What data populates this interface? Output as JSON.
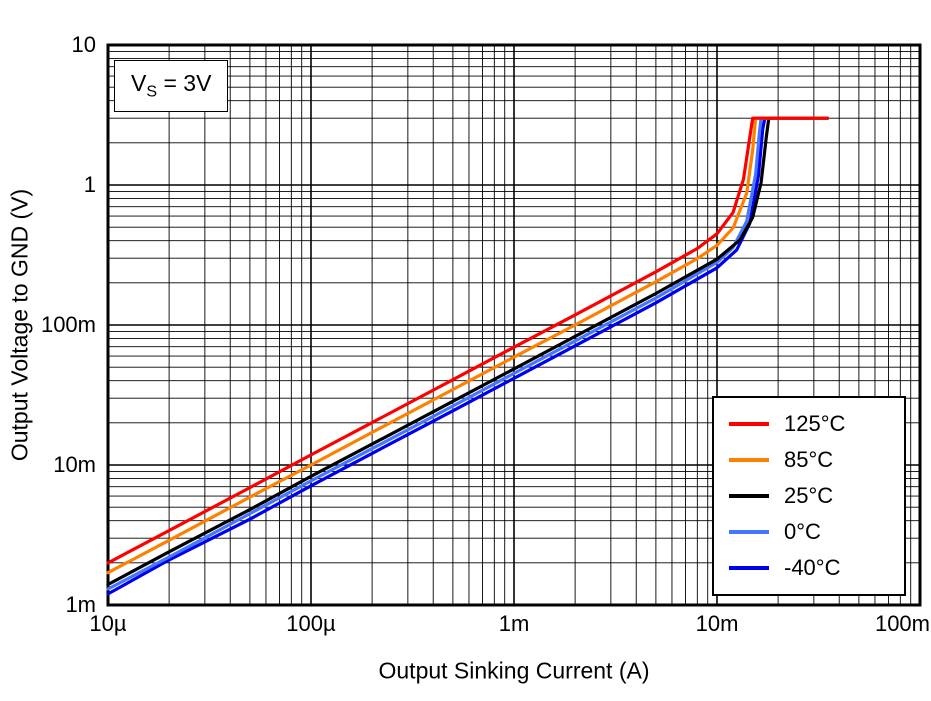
{
  "figure": {
    "background_color": "#ffffff",
    "annotation": {
      "var": "V",
      "sub": "S",
      "rest": " = 3V"
    }
  },
  "chart_data": {
    "type": "line",
    "title": "",
    "xlabel": "Output Sinking Current (A)",
    "ylabel": "Output Voltage to GND (V)",
    "x_scale": "log",
    "y_scale": "log",
    "xlim": [
      1e-05,
      0.1
    ],
    "ylim": [
      0.001,
      10
    ],
    "x_ticks": [
      {
        "v": 1e-05,
        "label": "10µ"
      },
      {
        "v": 0.0001,
        "label": "100µ"
      },
      {
        "v": 0.001,
        "label": "1m"
      },
      {
        "v": 0.01,
        "label": "10m"
      },
      {
        "v": 0.1,
        "label": "100m"
      }
    ],
    "y_ticks": [
      {
        "v": 0.001,
        "label": "1m"
      },
      {
        "v": 0.01,
        "label": "10m"
      },
      {
        "v": 0.1,
        "label": "100m"
      },
      {
        "v": 1,
        "label": "1"
      },
      {
        "v": 10,
        "label": "10"
      }
    ],
    "grid": {
      "show": true,
      "minor": true,
      "color": "#000000"
    },
    "legend": {
      "position": "lower-right",
      "border_color": "#000000"
    },
    "series": [
      {
        "name": "125°C",
        "color": "#FF0000",
        "points": [
          [
            1e-05,
            0.002
          ],
          [
            2e-05,
            0.0034
          ],
          [
            5e-05,
            0.0069
          ],
          [
            0.0001,
            0.0118
          ],
          [
            0.0002,
            0.0201
          ],
          [
            0.0005,
            0.0407
          ],
          [
            0.001,
            0.0694
          ],
          [
            0.002,
            0.118
          ],
          [
            0.005,
            0.24
          ],
          [
            0.008,
            0.352
          ],
          [
            0.01,
            0.448
          ],
          [
            0.012,
            0.637
          ],
          [
            0.0135,
            1.1
          ],
          [
            0.0145,
            2.2
          ],
          [
            0.015,
            3.0
          ],
          [
            0.035,
            3.0
          ]
        ]
      },
      {
        "name": "85°C",
        "color": "#FF8000",
        "points": [
          [
            1e-05,
            0.0017
          ],
          [
            2e-05,
            0.0029
          ],
          [
            5e-05,
            0.0059
          ],
          [
            0.0001,
            0.01
          ],
          [
            0.0002,
            0.0171
          ],
          [
            0.0005,
            0.0346
          ],
          [
            0.001,
            0.059
          ],
          [
            0.002,
            0.1
          ],
          [
            0.005,
            0.204
          ],
          [
            0.008,
            0.298
          ],
          [
            0.01,
            0.371
          ],
          [
            0.012,
            0.494
          ],
          [
            0.014,
            0.874
          ],
          [
            0.015,
            1.78
          ],
          [
            0.0155,
            3.0
          ],
          [
            0.035,
            3.0
          ]
        ]
      },
      {
        "name": "25°C",
        "color": "#000000",
        "points": [
          [
            1e-05,
            0.0014
          ],
          [
            2e-05,
            0.0024
          ],
          [
            5e-05,
            0.0048
          ],
          [
            0.0001,
            0.0083
          ],
          [
            0.0002,
            0.0141
          ],
          [
            0.0005,
            0.0285
          ],
          [
            0.001,
            0.0486
          ],
          [
            0.002,
            0.0829
          ],
          [
            0.005,
            0.168
          ],
          [
            0.01,
            0.295
          ],
          [
            0.013,
            0.406
          ],
          [
            0.015,
            0.588
          ],
          [
            0.0165,
            1.04
          ],
          [
            0.0175,
            2.2
          ],
          [
            0.018,
            3.0
          ],
          [
            0.035,
            3.0
          ]
        ]
      },
      {
        "name": "0°C",
        "color": "#4477FF",
        "points": [
          [
            1e-05,
            0.0013
          ],
          [
            2e-05,
            0.0022
          ],
          [
            5e-05,
            0.0045
          ],
          [
            0.0001,
            0.0077
          ],
          [
            0.0002,
            0.0131
          ],
          [
            0.0005,
            0.0264
          ],
          [
            0.001,
            0.0451
          ],
          [
            0.002,
            0.077
          ],
          [
            0.005,
            0.156
          ],
          [
            0.01,
            0.28
          ],
          [
            0.012,
            0.358
          ],
          [
            0.014,
            0.55
          ],
          [
            0.0155,
            1.19
          ],
          [
            0.0162,
            2.4
          ],
          [
            0.0165,
            3.0
          ],
          [
            0.035,
            3.0
          ]
        ]
      },
      {
        "name": "-40°C",
        "color": "#0000EE",
        "points": [
          [
            1e-05,
            0.0012
          ],
          [
            2e-05,
            0.0021
          ],
          [
            5e-05,
            0.0041
          ],
          [
            0.0001,
            0.0071
          ],
          [
            0.0002,
            0.0121
          ],
          [
            0.0005,
            0.0244
          ],
          [
            0.001,
            0.0416
          ],
          [
            0.002,
            0.071
          ],
          [
            0.005,
            0.144
          ],
          [
            0.01,
            0.256
          ],
          [
            0.0125,
            0.344
          ],
          [
            0.0145,
            0.533
          ],
          [
            0.016,
            1.16
          ],
          [
            0.0168,
            2.5
          ],
          [
            0.0172,
            3.0
          ],
          [
            0.035,
            3.0
          ]
        ]
      }
    ]
  }
}
